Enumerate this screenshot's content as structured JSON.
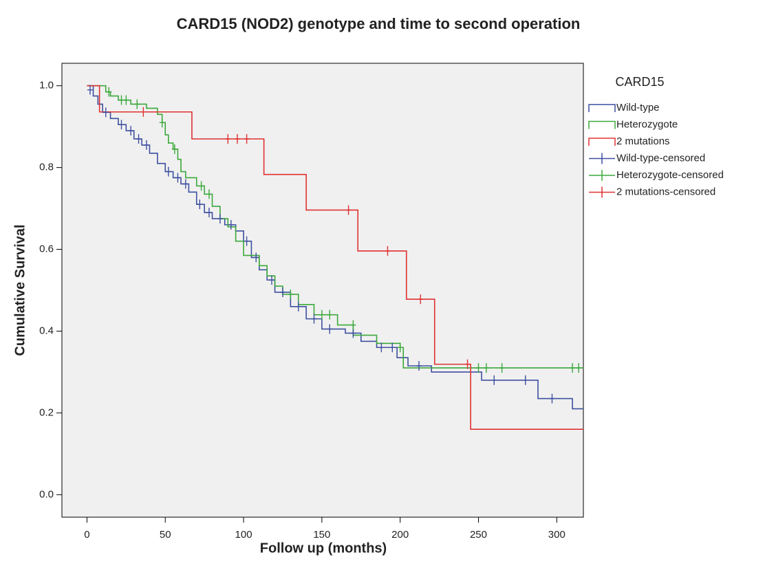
{
  "chart_data": {
    "type": "kaplan-meier",
    "title": "CARD15 (NOD2) genotype and time to second operation",
    "x_label": "Follow up (months)",
    "y_label": "Cumulative Survival",
    "legend_title": "CARD15",
    "legend": "right",
    "xlim": [
      -16,
      317
    ],
    "ylim": [
      -0.055,
      1.055
    ],
    "xticks": [
      0,
      50,
      100,
      150,
      200,
      250,
      300
    ],
    "yticks": [
      {
        "value": 0,
        "label": "0.0"
      },
      0.2,
      0.4,
      0.6,
      0.8,
      {
        "value": 1,
        "label": "1.0"
      }
    ],
    "series": [
      {
        "name": "Wild-type",
        "color": "#3d4fa0",
        "kind": "step",
        "x": [
          0,
          4,
          7,
          10,
          15,
          20,
          25,
          30,
          35,
          40,
          45,
          50,
          55,
          60,
          65,
          70,
          75,
          80,
          88,
          95,
          100,
          105,
          110,
          115,
          120,
          130,
          140,
          150,
          165,
          175,
          185,
          198,
          205,
          220,
          252,
          288,
          310
        ],
        "values": [
          1.0,
          0.975,
          0.955,
          0.935,
          0.92,
          0.905,
          0.89,
          0.87,
          0.855,
          0.835,
          0.81,
          0.79,
          0.775,
          0.76,
          0.74,
          0.71,
          0.69,
          0.675,
          0.66,
          0.645,
          0.62,
          0.58,
          0.55,
          0.525,
          0.495,
          0.46,
          0.43,
          0.405,
          0.395,
          0.375,
          0.36,
          0.335,
          0.315,
          0.3,
          0.28,
          0.235,
          0.21
        ]
      },
      {
        "name": "Heterozygote",
        "color": "#3aa83a",
        "kind": "step",
        "x": [
          0,
          12,
          15,
          20,
          28,
          38,
          45,
          48,
          50,
          52,
          55,
          58,
          60,
          63,
          70,
          75,
          80,
          85,
          90,
          95,
          100,
          110,
          115,
          120,
          125,
          135,
          145,
          160,
          170,
          185,
          200,
          202
        ],
        "values": [
          1.0,
          0.985,
          0.975,
          0.965,
          0.955,
          0.945,
          0.93,
          0.91,
          0.88,
          0.86,
          0.845,
          0.82,
          0.79,
          0.775,
          0.755,
          0.735,
          0.705,
          0.675,
          0.655,
          0.62,
          0.585,
          0.56,
          0.535,
          0.51,
          0.49,
          0.465,
          0.44,
          0.415,
          0.39,
          0.37,
          0.36,
          0.31
        ]
      },
      {
        "name": "2 mutations",
        "color": "#e03030",
        "kind": "step",
        "x": [
          0,
          8,
          67,
          113,
          140,
          173,
          204,
          222,
          245
        ],
        "values": [
          1.0,
          0.936,
          0.87,
          0.783,
          0.696,
          0.596,
          0.478,
          0.319,
          0.16
        ]
      },
      {
        "name": "Wild-type-censored",
        "color": "#3d4fa0",
        "kind": "censored",
        "x": [
          2,
          12,
          22,
          28,
          33,
          38,
          52,
          58,
          63,
          72,
          78,
          85,
          92,
          102,
          108,
          118,
          125,
          135,
          145,
          155,
          170,
          188,
          195,
          212,
          260,
          280,
          297
        ],
        "values": [
          0.99,
          0.935,
          0.905,
          0.89,
          0.87,
          0.855,
          0.79,
          0.775,
          0.76,
          0.71,
          0.69,
          0.675,
          0.66,
          0.62,
          0.58,
          0.525,
          0.495,
          0.46,
          0.43,
          0.405,
          0.395,
          0.36,
          0.36,
          0.315,
          0.28,
          0.28,
          0.235
        ]
      },
      {
        "name": "Heterozygote-censored",
        "color": "#3aa83a",
        "kind": "censored",
        "x": [
          14,
          22,
          25,
          32,
          48,
          56,
          73,
          78,
          130,
          150,
          155,
          170,
          200,
          250,
          255,
          265,
          310,
          314
        ],
        "values": [
          0.985,
          0.965,
          0.965,
          0.955,
          0.91,
          0.845,
          0.755,
          0.735,
          0.49,
          0.44,
          0.44,
          0.415,
          0.36,
          0.31,
          0.31,
          0.31,
          0.31,
          0.31
        ]
      },
      {
        "name": "2 mutations-censored",
        "color": "#e03030",
        "kind": "censored",
        "x": [
          36,
          90,
          96,
          102,
          167,
          192,
          213,
          243
        ],
        "values": [
          0.936,
          0.87,
          0.87,
          0.87,
          0.696,
          0.596,
          0.478,
          0.319
        ]
      }
    ]
  }
}
